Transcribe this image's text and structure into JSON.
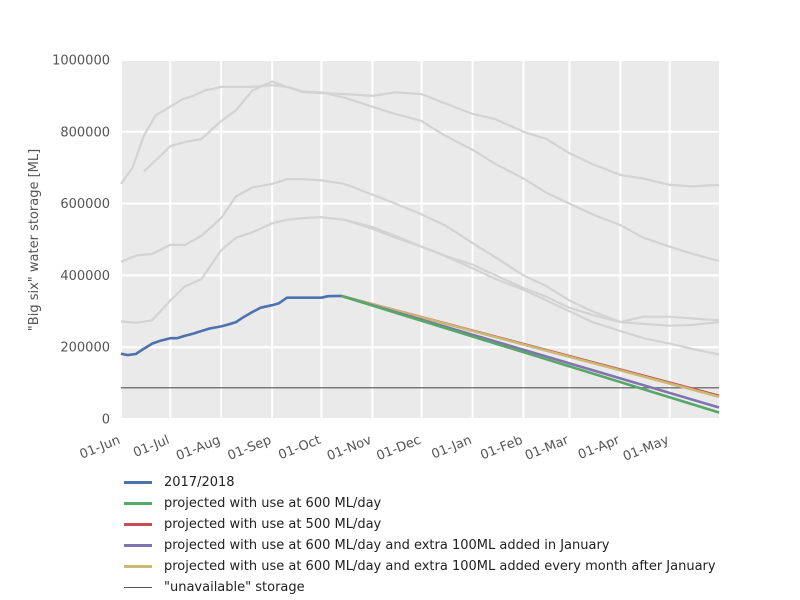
{
  "chart_data": {
    "type": "line",
    "title": "",
    "xlabel": "",
    "ylabel": "\"Big six\" water storage [ML]",
    "ylim": [
      0,
      1000000
    ],
    "yticks": [
      0,
      200000,
      400000,
      600000,
      800000,
      1000000
    ],
    "ytick_labels": [
      "0",
      "200000",
      "400000",
      "600000",
      "800000",
      "1000000"
    ],
    "xlim": [
      "2017-06-01",
      "2018-05-31"
    ],
    "xticks": [
      "2017-06-01",
      "2017-07-01",
      "2017-08-01",
      "2017-09-01",
      "2017-10-01",
      "2017-11-01",
      "2017-12-01",
      "2018-01-01",
      "2018-02-01",
      "2018-03-01",
      "2018-04-01",
      "2018-05-01"
    ],
    "xtick_labels": [
      "01-Jun",
      "01-Jul",
      "01-Aug",
      "01-Sep",
      "01-Oct",
      "01-Nov",
      "01-Dec",
      "01-Jan",
      "01-Feb",
      "01-Mar",
      "01-Apr",
      "01-May"
    ],
    "grid": true,
    "legend_position": "bottom",
    "background": "#EAEAEA",
    "series": [
      {
        "name": "2017/2018",
        "color": "#4C72B0",
        "x": [
          "2017-06-01",
          "2017-06-05",
          "2017-06-10",
          "2017-06-15",
          "2017-06-20",
          "2017-06-25",
          "2017-07-01",
          "2017-07-05",
          "2017-07-10",
          "2017-07-15",
          "2017-07-20",
          "2017-07-25",
          "2017-08-01",
          "2017-08-05",
          "2017-08-10",
          "2017-08-15",
          "2017-08-20",
          "2017-08-25",
          "2017-09-01",
          "2017-09-05",
          "2017-09-10",
          "2017-09-15",
          "2017-09-20",
          "2017-09-25",
          "2017-10-01",
          "2017-10-05",
          "2017-10-13"
        ],
        "values": [
          182000,
          178000,
          181000,
          196000,
          210000,
          218000,
          225000,
          225000,
          232000,
          238000,
          245000,
          252000,
          258000,
          263000,
          270000,
          285000,
          298000,
          310000,
          317000,
          322000,
          338000,
          338000,
          338000,
          338000,
          338000,
          342000,
          343000
        ]
      },
      {
        "name": "projected with use at 600 ML/day",
        "color": "#55A868",
        "x": [
          "2017-10-13",
          "2018-05-31"
        ],
        "values": [
          343000,
          18000
        ]
      },
      {
        "name": "projected with use at 500 ML/day",
        "color": "#C44E52",
        "x": [
          "2017-10-13",
          "2018-05-31"
        ],
        "values": [
          343000,
          65000
        ]
      },
      {
        "name": "projected with use at 600 ML/day and extra 100ML added in January",
        "color": "#8172B2",
        "x": [
          "2017-10-13",
          "2018-05-31"
        ],
        "values": [
          343000,
          32000
        ]
      },
      {
        "name": "projected with use at 600 ML/day and extra 100ML added every month after January",
        "color": "#CCB974",
        "x": [
          "2017-10-13",
          "2018-05-31"
        ],
        "values": [
          343000,
          62000
        ]
      },
      {
        "name": "\"unavailable\" storage",
        "color": "#555555",
        "x": [
          "2017-06-01",
          "2018-05-31"
        ],
        "values": [
          87000,
          87000
        ]
      }
    ],
    "background_series": [
      {
        "color": "#D3D3D3",
        "x": [
          "2017-06-01",
          "2017-06-08",
          "2017-06-15",
          "2017-06-22",
          "2017-07-01",
          "2017-07-08",
          "2017-07-15",
          "2017-07-22",
          "2017-08-01",
          "2017-08-10",
          "2017-08-20",
          "2017-09-01",
          "2017-09-10",
          "2017-09-20",
          "2017-10-01",
          "2017-10-15",
          "2017-11-01",
          "2017-11-15",
          "2017-12-01",
          "2017-12-15",
          "2018-01-01",
          "2018-01-15",
          "2018-02-01",
          "2018-02-15",
          "2018-03-01",
          "2018-03-15",
          "2018-04-01",
          "2018-04-15",
          "2018-05-01",
          "2018-05-15",
          "2018-05-31"
        ],
        "values": [
          655000,
          700000,
          790000,
          845000,
          870000,
          890000,
          900000,
          915000,
          925000,
          925000,
          925000,
          930000,
          925000,
          910000,
          908000,
          905000,
          900000,
          910000,
          905000,
          880000,
          850000,
          835000,
          800000,
          780000,
          740000,
          710000,
          680000,
          670000,
          652000,
          648000,
          652000
        ]
      },
      {
        "color": "#D3D3D3",
        "x": [
          "2017-06-15",
          "2017-06-22",
          "2017-07-01",
          "2017-07-10",
          "2017-07-20",
          "2017-08-01",
          "2017-08-10",
          "2017-08-20",
          "2017-09-01",
          "2017-09-10",
          "2017-09-20",
          "2017-10-01",
          "2017-10-15",
          "2017-11-01",
          "2017-11-15",
          "2017-12-01",
          "2017-12-15",
          "2018-01-01",
          "2018-01-15",
          "2018-02-01",
          "2018-02-15",
          "2018-03-01",
          "2018-03-15",
          "2018-04-01",
          "2018-04-15",
          "2018-05-01",
          "2018-05-15",
          "2018-05-31"
        ],
        "values": [
          690000,
          720000,
          760000,
          772000,
          780000,
          830000,
          860000,
          915000,
          940000,
          925000,
          912000,
          910000,
          895000,
          870000,
          850000,
          830000,
          790000,
          750000,
          710000,
          670000,
          630000,
          600000,
          570000,
          540000,
          505000,
          480000,
          460000,
          440000
        ]
      },
      {
        "color": "#D3D3D3",
        "x": [
          "2017-06-01",
          "2017-06-10",
          "2017-06-20",
          "2017-07-01",
          "2017-07-10",
          "2017-07-20",
          "2017-08-01",
          "2017-08-10",
          "2017-08-20",
          "2017-09-01",
          "2017-09-10",
          "2017-09-20",
          "2017-10-01",
          "2017-10-15",
          "2017-11-01",
          "2017-11-15",
          "2017-12-01",
          "2017-12-15",
          "2018-01-01",
          "2018-01-15",
          "2018-02-01",
          "2018-02-15",
          "2018-03-01",
          "2018-03-15",
          "2018-04-01",
          "2018-04-15",
          "2018-05-01",
          "2018-05-15",
          "2018-05-31"
        ],
        "values": [
          438000,
          455000,
          460000,
          485000,
          485000,
          510000,
          560000,
          620000,
          645000,
          655000,
          668000,
          668000,
          665000,
          655000,
          625000,
          600000,
          570000,
          540000,
          490000,
          450000,
          400000,
          370000,
          330000,
          300000,
          270000,
          265000,
          260000,
          262000,
          270000
        ]
      },
      {
        "color": "#D3D3D3",
        "x": [
          "2017-06-01",
          "2017-06-10",
          "2017-06-20",
          "2017-07-01",
          "2017-07-10",
          "2017-07-20",
          "2017-08-01",
          "2017-08-10",
          "2017-08-20",
          "2017-09-01",
          "2017-09-10",
          "2017-09-20",
          "2017-10-01",
          "2017-10-15",
          "2017-11-01",
          "2017-11-15",
          "2017-12-01",
          "2017-12-15",
          "2018-01-01",
          "2018-01-15",
          "2018-02-01",
          "2018-02-15",
          "2018-03-01",
          "2018-03-15",
          "2018-04-01",
          "2018-04-15",
          "2018-05-01",
          "2018-05-15",
          "2018-05-31"
        ],
        "values": [
          272000,
          268000,
          275000,
          330000,
          370000,
          390000,
          470000,
          505000,
          520000,
          545000,
          555000,
          560000,
          562000,
          555000,
          535000,
          510000,
          480000,
          455000,
          430000,
          400000,
          365000,
          340000,
          310000,
          290000,
          270000,
          285000,
          285000,
          280000,
          275000
        ]
      },
      {
        "color": "#D3D3D3",
        "x": [
          "2017-10-15",
          "2017-11-01",
          "2017-11-15",
          "2017-12-01",
          "2017-12-15",
          "2018-01-01",
          "2018-01-15",
          "2018-02-01",
          "2018-02-15",
          "2018-03-01",
          "2018-03-15",
          "2018-04-01",
          "2018-04-15",
          "2018-05-01",
          "2018-05-15",
          "2018-05-31"
        ],
        "values": [
          555000,
          530000,
          505000,
          480000,
          455000,
          420000,
          390000,
          360000,
          330000,
          300000,
          270000,
          245000,
          225000,
          210000,
          195000,
          180000
        ]
      }
    ]
  }
}
